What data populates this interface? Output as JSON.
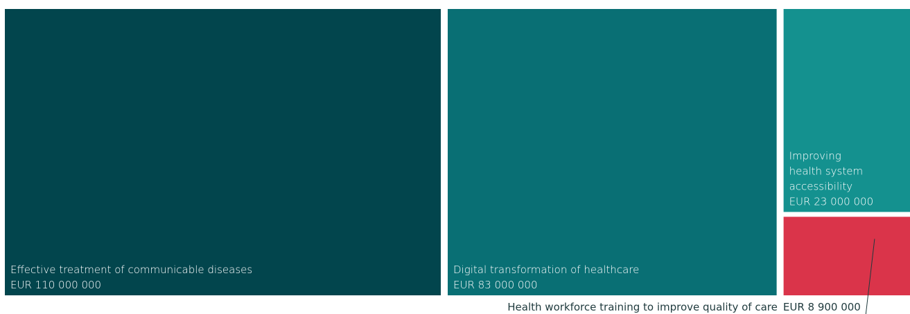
{
  "chart_data": {
    "type": "treemap",
    "currency": "EUR",
    "items": [
      {
        "name_lines": [
          "Effective treatment of communicable diseases"
        ],
        "value": 110000000,
        "value_label": "EUR 110 000 000",
        "color": "#02454d"
      },
      {
        "name_lines": [
          "Digital transformation of healthcare"
        ],
        "value": 83000000,
        "value_label": "EUR 83 000 000",
        "color": "#096f74"
      },
      {
        "name_lines": [
          "Improving",
          "health system",
          "accessibility"
        ],
        "value": 23000000,
        "value_label": "EUR 23 000 000",
        "color": "#14918f"
      },
      {
        "name_lines": [
          "Health workforce training to improve quality of care"
        ],
        "value": 8900000,
        "value_label": "EUR 8 900 000",
        "color": "#da344a",
        "label_outside": true
      }
    ]
  }
}
